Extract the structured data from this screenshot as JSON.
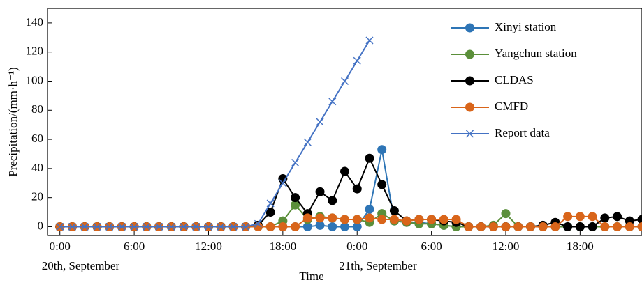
{
  "chart_data": {
    "type": "line",
    "x": [
      0,
      1,
      2,
      3,
      4,
      5,
      6,
      7,
      8,
      9,
      10,
      11,
      12,
      13,
      14,
      15,
      16,
      17,
      18,
      19,
      20,
      21,
      22,
      23,
      24,
      25,
      26,
      27,
      28,
      29,
      30,
      31,
      32,
      33,
      34,
      35,
      36,
      37,
      38,
      39,
      40,
      41,
      42,
      43,
      44,
      45,
      46,
      47
    ],
    "xlabel": "Time",
    "ylabel": "Precipitation/(mm·h⁻¹)",
    "xlim": [
      -1,
      47
    ],
    "xticks": [
      {
        "value": 0,
        "label": "0:00"
      },
      {
        "value": 6,
        "label": "6:00"
      },
      {
        "value": 12,
        "label": "12:00"
      },
      {
        "value": 18,
        "label": "18:00"
      },
      {
        "value": 24,
        "label": "0:00"
      },
      {
        "value": 30,
        "label": "6:00"
      },
      {
        "value": 36,
        "label": "12:00"
      },
      {
        "value": 42,
        "label": "18:00"
      }
    ],
    "x_date_labels": [
      {
        "value": 0,
        "label": "20th, September"
      },
      {
        "value": 24,
        "label": "21th, September"
      }
    ],
    "ylim": [
      -6,
      150
    ],
    "yticks": [
      0,
      20,
      40,
      60,
      80,
      100,
      120,
      140
    ],
    "legend": "upper right",
    "series": [
      {
        "name": "Xinyi station",
        "color": "#2e75b6",
        "marker": "circle",
        "values": [
          0,
          0,
          0,
          0,
          0,
          0,
          0,
          0,
          0,
          0,
          0,
          0,
          0,
          0,
          0,
          0,
          0,
          0,
          0,
          0,
          0,
          1,
          0,
          0,
          0,
          12,
          53,
          4,
          3,
          3,
          2,
          1,
          0,
          0,
          0,
          0,
          0,
          0,
          0,
          0,
          0,
          0,
          0,
          0,
          0,
          0,
          0,
          0
        ]
      },
      {
        "name": "Yangchun station",
        "color": "#5b8f3a",
        "marker": "circle",
        "values": [
          0,
          0,
          0,
          0,
          0,
          0,
          0,
          0,
          0,
          0,
          0,
          0,
          0,
          0,
          0,
          0,
          0,
          0,
          4,
          15,
          5,
          7,
          6,
          5,
          5,
          3,
          9,
          4,
          3,
          2,
          2,
          1,
          0,
          0,
          0,
          1,
          9,
          0,
          0,
          0,
          0,
          0,
          0,
          0,
          0,
          0,
          0,
          0
        ]
      },
      {
        "name": "CLDAS",
        "color": "#000000",
        "marker": "circle",
        "values": [
          0,
          0,
          0,
          0,
          0,
          0,
          0,
          0,
          0,
          0,
          0,
          0,
          0,
          0,
          0,
          0,
          1,
          10,
          33,
          20,
          9,
          24,
          18,
          38,
          26,
          47,
          29,
          11,
          4,
          5,
          5,
          4,
          3,
          0,
          0,
          0,
          0,
          0,
          0,
          1,
          3,
          0,
          0,
          0,
          6,
          7,
          4,
          5
        ]
      },
      {
        "name": "CMFD",
        "color": "#d9651a",
        "marker": "circle",
        "values": [
          0,
          0,
          0,
          0,
          0,
          0,
          0,
          0,
          0,
          0,
          0,
          0,
          0,
          0,
          0,
          0,
          0,
          0,
          0,
          0,
          6,
          6,
          6,
          5,
          5,
          6,
          5,
          5,
          4,
          5,
          5,
          5,
          5,
          0,
          0,
          0,
          0,
          0,
          0,
          0,
          0,
          7,
          7,
          7,
          0,
          0,
          0,
          0
        ]
      },
      {
        "name": "Report data",
        "color": "#4472c4",
        "marker": "x",
        "values": [
          0,
          0,
          0,
          0,
          0,
          0,
          0,
          0,
          0,
          0,
          0,
          0,
          0,
          0,
          0,
          0,
          2,
          16,
          30,
          44,
          58,
          72,
          86,
          100,
          114,
          128,
          null,
          null,
          null,
          null,
          null,
          null,
          null,
          null,
          null,
          null,
          null,
          null,
          null,
          null,
          null,
          null,
          null,
          null,
          null,
          null,
          null,
          null
        ]
      }
    ]
  }
}
